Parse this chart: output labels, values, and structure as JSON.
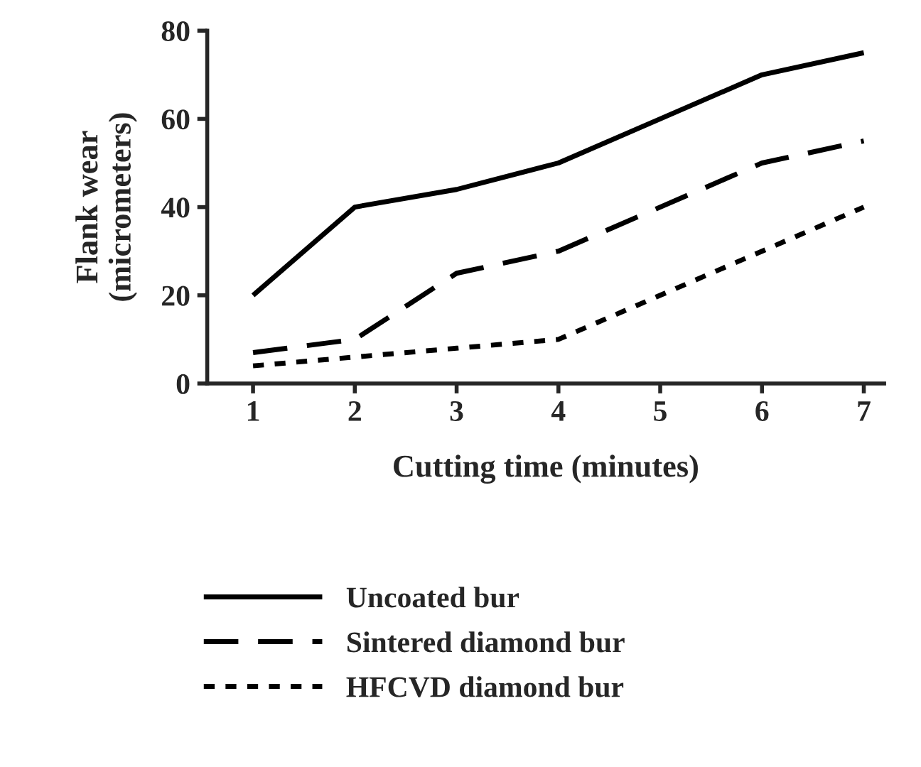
{
  "chart_data": {
    "type": "line",
    "xlabel": "Cutting time (minutes)",
    "ylabel": "Flank wear\n(micrometers)",
    "x": [
      1,
      2,
      3,
      4,
      5,
      6,
      7
    ],
    "series": [
      {
        "name": "Uncoated bur",
        "color": "#000000",
        "line_style": "solid",
        "values": [
          20,
          40,
          44,
          50,
          60,
          70,
          75
        ]
      },
      {
        "name": "Sintered diamond bur",
        "color": "#000000",
        "line_style": "dashed",
        "values": [
          7,
          10,
          25,
          30,
          40,
          50,
          55
        ]
      },
      {
        "name": "HFCVD diamond bur",
        "color": "#000000",
        "line_style": "dotted",
        "values": [
          4,
          6,
          8,
          10,
          20,
          30,
          40
        ]
      }
    ],
    "xlim": [
      0.55,
      7.2
    ],
    "xticks": [
      1,
      2,
      3,
      4,
      5,
      6,
      7
    ],
    "ylim": [
      0,
      80
    ],
    "yticks": [
      0,
      20,
      40,
      60,
      80
    ],
    "grid": false,
    "legend": "bottom",
    "marker": "none"
  }
}
